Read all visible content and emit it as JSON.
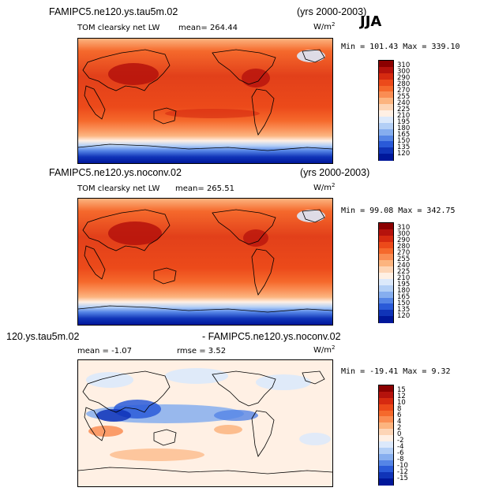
{
  "season": "JJA",
  "panels": [
    {
      "id": "p1",
      "case": "FAMIPC5.ne120.ys.tau5m.02",
      "years": "(yrs 2000-2003)",
      "variable": "TOM clearsky net LW",
      "mean_label": "mean=",
      "mean_value": "264.44",
      "units_base": "W/m",
      "units_exp": "2",
      "min_label": "Min =",
      "min_value": "101.43",
      "max_label": "Max =",
      "max_value": "339.10",
      "colorbar": {
        "labels": [
          "310",
          "300",
          "290",
          "280",
          "270",
          "255",
          "240",
          "225",
          "210",
          "195",
          "180",
          "165",
          "150",
          "135",
          "120"
        ],
        "colors": [
          "#8b0000",
          "#b5120c",
          "#d62a10",
          "#ec4a1a",
          "#f5692c",
          "#fa8d53",
          "#fcb47f",
          "#fdd5b6",
          "#fff0e4",
          "#dce9fb",
          "#b3cff6",
          "#86aeef",
          "#5585e6",
          "#2a5ad8",
          "#1034b8",
          "#00179a"
        ]
      }
    },
    {
      "id": "p2",
      "case": "FAMIPC5.ne120.ys.noconv.02",
      "years": "(yrs 2000-2003)",
      "variable": "TOM clearsky net LW",
      "mean_label": "mean=",
      "mean_value": "265.51",
      "units_base": "W/m",
      "units_exp": "2",
      "min_label": "Min =",
      "min_value": "99.08",
      "max_label": "Max =",
      "max_value": "342.75",
      "colorbar": {
        "labels": [
          "310",
          "300",
          "290",
          "280",
          "270",
          "255",
          "240",
          "225",
          "210",
          "195",
          "180",
          "165",
          "150",
          "135",
          "120"
        ],
        "colors": [
          "#8b0000",
          "#b5120c",
          "#d62a10",
          "#ec4a1a",
          "#f5692c",
          "#fa8d53",
          "#fcb47f",
          "#fdd5b6",
          "#fff0e4",
          "#dce9fb",
          "#b3cff6",
          "#86aeef",
          "#5585e6",
          "#2a5ad8",
          "#1034b8",
          "#00179a"
        ]
      }
    },
    {
      "id": "p3",
      "case_left": "120.ys.tau5m.02",
      "case_right": "- FAMIPC5.ne120.ys.noconv.02",
      "mean_label": "mean =",
      "mean_value": "-1.07",
      "rmse_label": "rmse =",
      "rmse_value": "3.52",
      "units_base": "W/m",
      "units_exp": "2",
      "min_label": "Min =",
      "min_value": "-19.41",
      "max_label": "Max =",
      "max_value": "9.32",
      "colorbar": {
        "labels": [
          "15",
          "12",
          "10",
          "8",
          "6",
          "4",
          "2",
          "0",
          "-2",
          "-4",
          "-6",
          "-8",
          "-10",
          "-12",
          "-15"
        ],
        "colors": [
          "#8b0000",
          "#b5120c",
          "#d62a10",
          "#ec4a1a",
          "#f5692c",
          "#fa8d53",
          "#fcb47f",
          "#fdd5b6",
          "#fff0e4",
          "#dce9fb",
          "#b3cff6",
          "#86aeef",
          "#5585e6",
          "#2a5ad8",
          "#1034b8",
          "#00179a"
        ]
      }
    }
  ]
}
